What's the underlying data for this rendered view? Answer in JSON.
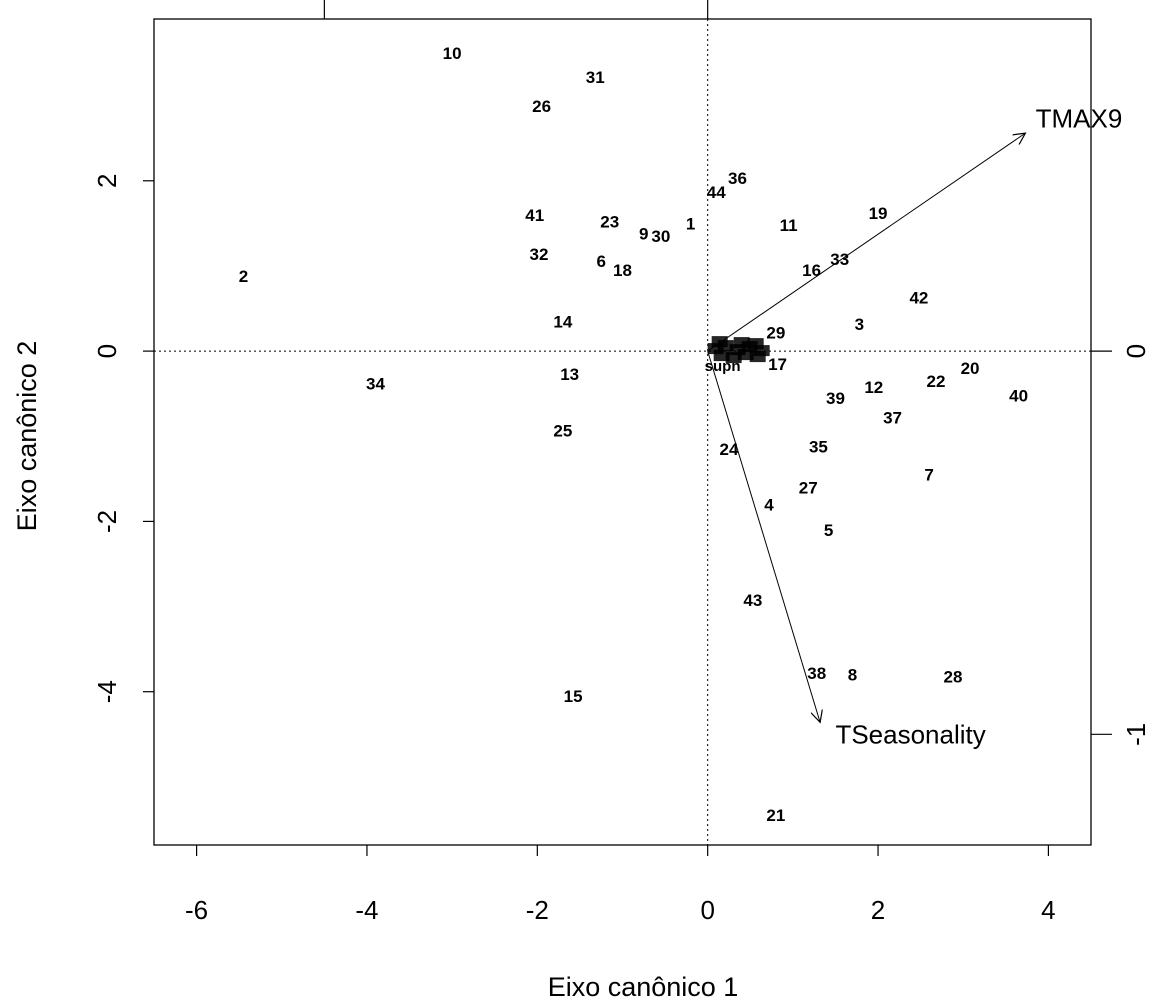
{
  "chart_data": {
    "type": "scatter",
    "xlabel": "Eixo canônico 1",
    "ylabel": "Eixo canônico 2",
    "xlim": [
      -6.5,
      4.5
    ],
    "ylim": [
      -5.8,
      3.9
    ],
    "x_ticks": [
      -6,
      -4,
      -2,
      0,
      2,
      4
    ],
    "y_ticks": [
      -4,
      -2,
      0,
      2
    ],
    "right_axis_ticks": [
      {
        "value": 0,
        "label": "0"
      },
      {
        "value": -1,
        "label": "-1"
      }
    ],
    "right_axis_scale": 4.5,
    "top_axis_ticks": [
      -4.5,
      0
    ],
    "reference_lines": {
      "x": 0,
      "y": 0,
      "style": "dotted"
    },
    "grid": false,
    "sites": [
      {
        "label": "1",
        "x": -0.2,
        "y": 1.5
      },
      {
        "label": "2",
        "x": -5.45,
        "y": 0.88
      },
      {
        "label": "3",
        "x": 1.78,
        "y": 0.32
      },
      {
        "label": "4",
        "x": 0.72,
        "y": -1.8
      },
      {
        "label": "5",
        "x": 1.42,
        "y": -2.1
      },
      {
        "label": "6",
        "x": -1.25,
        "y": 1.06
      },
      {
        "label": "7",
        "x": 2.6,
        "y": -1.45
      },
      {
        "label": "8",
        "x": 1.7,
        "y": -3.8
      },
      {
        "label": "9",
        "x": -0.75,
        "y": 1.38
      },
      {
        "label": "10",
        "x": -3.0,
        "y": 3.5
      },
      {
        "label": "11",
        "x": 0.95,
        "y": 1.48
      },
      {
        "label": "12",
        "x": 1.95,
        "y": -0.42
      },
      {
        "label": "13",
        "x": -1.62,
        "y": -0.27
      },
      {
        "label": "14",
        "x": -1.7,
        "y": 0.35
      },
      {
        "label": "15",
        "x": -1.58,
        "y": -4.05
      },
      {
        "label": "16",
        "x": 1.22,
        "y": 0.95
      },
      {
        "label": "17",
        "x": 0.82,
        "y": -0.15
      },
      {
        "label": "18",
        "x": -1.0,
        "y": 0.95
      },
      {
        "label": "19",
        "x": 2.0,
        "y": 1.62
      },
      {
        "label": "20",
        "x": 3.08,
        "y": -0.2
      },
      {
        "label": "21",
        "x": 0.8,
        "y": -5.45
      },
      {
        "label": "22",
        "x": 2.68,
        "y": -0.35
      },
      {
        "label": "23",
        "x": -1.15,
        "y": 1.52
      },
      {
        "label": "24",
        "x": 0.25,
        "y": -1.15
      },
      {
        "label": "25",
        "x": -1.7,
        "y": -0.93
      },
      {
        "label": "26",
        "x": -1.95,
        "y": 2.88
      },
      {
        "label": "27",
        "x": 1.18,
        "y": -1.6
      },
      {
        "label": "28",
        "x": 2.88,
        "y": -3.82
      },
      {
        "label": "29",
        "x": 0.8,
        "y": 0.22
      },
      {
        "label": "30",
        "x": -0.55,
        "y": 1.35
      },
      {
        "label": "31",
        "x": -1.32,
        "y": 3.22
      },
      {
        "label": "32",
        "x": -1.98,
        "y": 1.14
      },
      {
        "label": "33",
        "x": 1.55,
        "y": 1.08
      },
      {
        "label": "34",
        "x": -3.9,
        "y": -0.38
      },
      {
        "label": "35",
        "x": 1.3,
        "y": -1.12
      },
      {
        "label": "36",
        "x": 0.35,
        "y": 2.03
      },
      {
        "label": "37",
        "x": 2.17,
        "y": -0.78
      },
      {
        "label": "38",
        "x": 1.28,
        "y": -3.78
      },
      {
        "label": "39",
        "x": 1.5,
        "y": -0.55
      },
      {
        "label": "40",
        "x": 3.65,
        "y": -0.52
      },
      {
        "label": "41",
        "x": -2.03,
        "y": 1.6
      },
      {
        "label": "42",
        "x": 2.48,
        "y": 0.63
      },
      {
        "label": "43",
        "x": 0.53,
        "y": -2.92
      },
      {
        "label": "44",
        "x": 0.1,
        "y": 1.87
      }
    ],
    "species_cluster_visible_labels": [
      "supn"
    ],
    "arrows": [
      {
        "label": "TMAX9",
        "x0": 0,
        "y0": 0,
        "x1": 3.73,
        "y1": 2.56,
        "label_x": 3.85,
        "label_y": 2.73
      },
      {
        "label": "TSeasonality",
        "x0": 0,
        "y0": 0,
        "x1": 1.32,
        "y1": -4.36,
        "label_x": 1.5,
        "label_y": -4.5
      }
    ]
  }
}
